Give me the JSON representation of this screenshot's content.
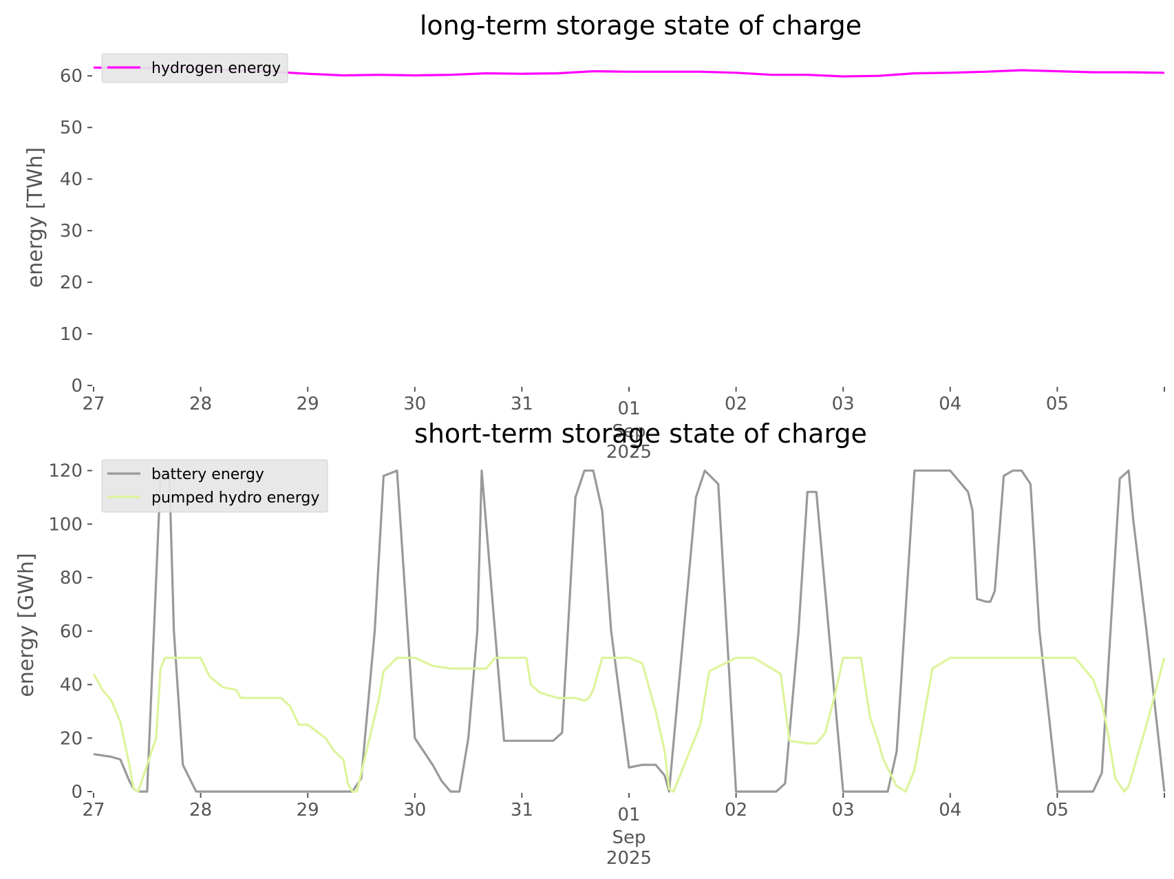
{
  "chart_data": [
    {
      "type": "line",
      "title": "long-term storage state of charge",
      "xlabel": "",
      "ylabel": "energy [TWh]",
      "ylim": [
        0,
        63.5
      ],
      "yticks": [
        0,
        10,
        20,
        30,
        40,
        50,
        60
      ],
      "ytick_labels": [
        "0",
        "10",
        "20",
        "30",
        "40",
        "50",
        "60"
      ],
      "xlim": [
        "2025-08-27 00:00",
        "2025-09-06 00:00"
      ],
      "xticks": [
        "2025-08-27",
        "2025-08-28",
        "2025-08-29",
        "2025-08-30",
        "2025-08-31",
        "2025-09-01",
        "2025-09-02",
        "2025-09-03",
        "2025-09-04",
        "2025-09-05"
      ],
      "xtick_labels": [
        "27",
        "28",
        "29",
        "30",
        "31",
        "01",
        "02",
        "03",
        "04",
        "05"
      ],
      "xtick_sublabels": [
        "",
        "",
        "",
        "",
        "",
        "Sep\n2025",
        "",
        "",
        "",
        ""
      ],
      "grid": false,
      "legend_position": "top-left",
      "series": [
        {
          "name": "hydrogen energy",
          "color": "#ff00ff",
          "x": [
            "2025-08-27 00:00",
            "2025-08-27 12:00",
            "2025-08-28 00:00",
            "2025-08-28 12:00",
            "2025-08-29 00:00",
            "2025-08-29 08:00",
            "2025-08-29 16:00",
            "2025-08-30 00:00",
            "2025-08-30 08:00",
            "2025-08-30 16:00",
            "2025-08-31 00:00",
            "2025-08-31 08:00",
            "2025-08-31 16:00",
            "2025-09-01 00:00",
            "2025-09-01 12:00",
            "2025-09-01 16:00",
            "2025-09-02 00:00",
            "2025-09-02 08:00",
            "2025-09-02 16:00",
            "2025-09-03 00:00",
            "2025-09-03 08:00",
            "2025-09-03 16:00",
            "2025-09-04 00:00",
            "2025-09-04 08:00",
            "2025-09-04 16:00",
            "2025-09-05 00:00",
            "2025-09-05 08:00",
            "2025-09-05 16:00",
            "2025-09-06 00:00"
          ],
          "values": [
            61.6,
            61.5,
            61.3,
            61.0,
            60.4,
            60.1,
            60.2,
            60.1,
            60.2,
            60.5,
            60.4,
            60.5,
            60.9,
            60.8,
            60.8,
            60.8,
            60.6,
            60.2,
            60.2,
            59.9,
            60.0,
            60.5,
            60.6,
            60.8,
            61.1,
            60.9,
            60.7,
            60.7,
            60.6
          ]
        }
      ]
    },
    {
      "type": "line",
      "title": "short-term storage state of charge",
      "xlabel": "",
      "ylabel": "energy [GWh]",
      "ylim": [
        0,
        123
      ],
      "yticks": [
        0,
        20,
        40,
        60,
        80,
        100,
        120
      ],
      "ytick_labels": [
        "0",
        "20",
        "40",
        "60",
        "80",
        "100",
        "120"
      ],
      "xlim": [
        "2025-08-27 00:00",
        "2025-09-06 00:00"
      ],
      "xticks": [
        "2025-08-27",
        "2025-08-28",
        "2025-08-29",
        "2025-08-30",
        "2025-08-31",
        "2025-09-01",
        "2025-09-02",
        "2025-09-03",
        "2025-09-04",
        "2025-09-05"
      ],
      "xtick_labels": [
        "27",
        "28",
        "29",
        "30",
        "31",
        "01",
        "02",
        "03",
        "04",
        "05"
      ],
      "xtick_sublabels": [
        "",
        "",
        "",
        "",
        "",
        "Sep\n2025",
        "",
        "",
        "",
        ""
      ],
      "grid": false,
      "legend_position": "top-left",
      "series": [
        {
          "name": "battery energy",
          "color": "#999999",
          "x": [
            "2025-08-27 00:00",
            "2025-08-27 04:00",
            "2025-08-27 06:00",
            "2025-08-27 08:00",
            "2025-08-27 09:00",
            "2025-08-27 10:00",
            "2025-08-27 12:00",
            "2025-08-27 15:00",
            "2025-08-27 16:00",
            "2025-08-27 17:00",
            "2025-08-27 18:00",
            "2025-08-27 20:00",
            "2025-08-27 23:00",
            "2025-08-28 00:00",
            "2025-08-29 10:00",
            "2025-08-29 12:00",
            "2025-08-29 15:00",
            "2025-08-29 17:00",
            "2025-08-29 20:00",
            "2025-08-30 00:00",
            "2025-08-30 04:00",
            "2025-08-30 06:00",
            "2025-08-30 08:00",
            "2025-08-30 10:00",
            "2025-08-30 12:00",
            "2025-08-30 14:00",
            "2025-08-30 15:00",
            "2025-08-30 20:00",
            "2025-08-30 22:00",
            "2025-08-31 00:00",
            "2025-08-31 07:00",
            "2025-08-31 09:00",
            "2025-08-31 12:00",
            "2025-08-31 14:00",
            "2025-08-31 16:00",
            "2025-08-31 18:00",
            "2025-08-31 20:00",
            "2025-09-01 00:00",
            "2025-09-01 03:00",
            "2025-09-01 06:00",
            "2025-09-01 08:00",
            "2025-09-01 09:00",
            "2025-09-01 15:00",
            "2025-09-01 17:00",
            "2025-09-01 20:00",
            "2025-09-02 00:00",
            "2025-09-02 09:00",
            "2025-09-02 11:00",
            "2025-09-02 14:00",
            "2025-09-02 16:00",
            "2025-09-02 18:00",
            "2025-09-03 00:00",
            "2025-09-03 08:00",
            "2025-09-03 10:00",
            "2025-09-03 12:00",
            "2025-09-03 16:00",
            "2025-09-04 00:00",
            "2025-09-04 04:00",
            "2025-09-04 05:00",
            "2025-09-04 06:00",
            "2025-09-04 08:00",
            "2025-09-04 09:00",
            "2025-09-04 10:00",
            "2025-09-04 12:00",
            "2025-09-04 14:00",
            "2025-09-04 16:00",
            "2025-09-04 18:00",
            "2025-09-04 20:00",
            "2025-09-05 00:00",
            "2025-09-05 08:00",
            "2025-09-05 10:00",
            "2025-09-05 14:00",
            "2025-09-05 16:00",
            "2025-09-05 17:00",
            "2025-09-05 20:00",
            "2025-09-06 00:00"
          ],
          "values": [
            14,
            13,
            12,
            4,
            1,
            0,
            0,
            118,
            120,
            118,
            60,
            10,
            0,
            0,
            0,
            5,
            60,
            118,
            120,
            20,
            10,
            4,
            0,
            0,
            20,
            60,
            120,
            19,
            19,
            19,
            19,
            22,
            110,
            120,
            120,
            105,
            60,
            9,
            10,
            10,
            6,
            0,
            110,
            120,
            115,
            0,
            0,
            3,
            60,
            112,
            112,
            0,
            0,
            0,
            15,
            120,
            120,
            112,
            105,
            72,
            71,
            71,
            75,
            118,
            120,
            120,
            115,
            60,
            0,
            0,
            7,
            117,
            120,
            102,
            60,
            0
          ]
        },
        {
          "name": "pumped hydro energy",
          "color": "#ddf49b",
          "x": [
            "2025-08-27 00:00",
            "2025-08-27 02:00",
            "2025-08-27 04:00",
            "2025-08-27 06:00",
            "2025-08-27 08:00",
            "2025-08-27 09:00",
            "2025-08-27 10:00",
            "2025-08-27 14:00",
            "2025-08-27 15:00",
            "2025-08-27 16:00",
            "2025-08-27 22:00",
            "2025-08-28 00:00",
            "2025-08-28 02:00",
            "2025-08-28 05:00",
            "2025-08-28 08:00",
            "2025-08-28 09:00",
            "2025-08-28 12:00",
            "2025-08-28 18:00",
            "2025-08-28 20:00",
            "2025-08-28 22:00",
            "2025-08-29 00:00",
            "2025-08-29 04:00",
            "2025-08-29 06:00",
            "2025-08-29 08:00",
            "2025-08-29 09:00",
            "2025-08-29 10:00",
            "2025-08-29 11:00",
            "2025-08-29 16:00",
            "2025-08-29 17:00",
            "2025-08-29 20:00",
            "2025-08-29 23:00",
            "2025-08-30 00:00",
            "2025-08-30 04:00",
            "2025-08-30 08:00",
            "2025-08-30 12:00",
            "2025-08-30 16:00",
            "2025-08-30 18:00",
            "2025-08-31 00:00",
            "2025-08-31 01:00",
            "2025-08-31 02:00",
            "2025-08-31 04:00",
            "2025-08-31 08:00",
            "2025-08-31 12:00",
            "2025-08-31 14:00",
            "2025-08-31 15:00",
            "2025-08-31 16:00",
            "2025-08-31 18:00",
            "2025-09-01 00:00",
            "2025-09-01 03:00",
            "2025-09-01 04:00",
            "2025-09-01 06:00",
            "2025-09-01 08:00",
            "2025-09-01 09:00",
            "2025-09-01 10:00",
            "2025-09-01 16:00",
            "2025-09-01 18:00",
            "2025-09-02 00:00",
            "2025-09-02 04:00",
            "2025-09-02 08:00",
            "2025-09-02 10:00",
            "2025-09-02 12:00",
            "2025-09-02 16:00",
            "2025-09-02 18:00",
            "2025-09-02 20:00",
            "2025-09-02 22:00",
            "2025-09-03 00:00",
            "2025-09-03 04:00",
            "2025-09-03 06:00",
            "2025-09-03 08:00",
            "2025-09-03 09:00",
            "2025-09-03 12:00",
            "2025-09-03 14:00",
            "2025-09-03 16:00",
            "2025-09-03 20:00",
            "2025-09-04 00:00",
            "2025-09-04 16:00",
            "2025-09-04 20:00",
            "2025-09-05 00:00",
            "2025-09-05 04:00",
            "2025-09-05 08:00",
            "2025-09-05 10:00",
            "2025-09-05 11:00",
            "2025-09-05 13:00",
            "2025-09-05 15:00",
            "2025-09-05 16:00",
            "2025-09-05 20:00",
            "2025-09-06 00:00"
          ],
          "values": [
            44,
            38,
            34,
            26,
            10,
            1,
            0,
            20,
            46,
            50,
            50,
            50,
            43,
            39,
            38,
            35,
            35,
            35,
            32,
            25,
            25,
            20,
            15,
            12,
            3,
            0,
            0,
            35,
            45,
            50,
            50,
            50,
            47,
            46,
            46,
            46,
            50,
            50,
            50,
            40,
            37,
            35,
            35,
            34,
            35,
            38,
            50,
            50,
            48,
            42,
            30,
            15,
            1,
            0,
            25,
            45,
            50,
            50,
            46,
            44,
            19,
            18,
            18,
            22,
            35,
            50,
            50,
            28,
            18,
            12,
            2,
            0,
            8,
            46,
            50,
            50,
            50,
            50,
            50,
            42,
            33,
            25,
            5,
            0,
            2,
            25,
            50
          ]
        }
      ]
    }
  ]
}
